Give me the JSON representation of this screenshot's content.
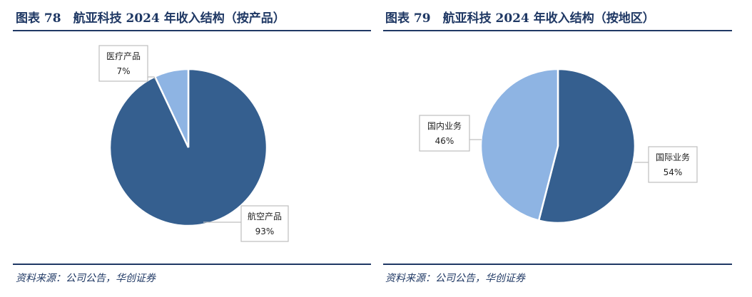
{
  "chart_data": [
    {
      "type": "pie",
      "title": "图表 78　航亚科技 2024 年收入结构（按产品）",
      "source": "资料来源：公司公告，华创证券",
      "slices": [
        {
          "name": "航空产品",
          "value": 93,
          "label": "93%",
          "color": "#355f8f"
        },
        {
          "name": "医疗产品",
          "value": 7,
          "label": "7%",
          "color": "#8eb4e3"
        }
      ]
    },
    {
      "type": "pie",
      "title": "图表 79　航亚科技 2024 年收入结构（按地区）",
      "source": "资料来源：公司公告，华创证券",
      "slices": [
        {
          "name": "国际业务",
          "value": 54,
          "label": "54%",
          "color": "#355f8f"
        },
        {
          "name": "国内业务",
          "value": 46,
          "label": "46%",
          "color": "#8eb4e3"
        }
      ]
    }
  ]
}
